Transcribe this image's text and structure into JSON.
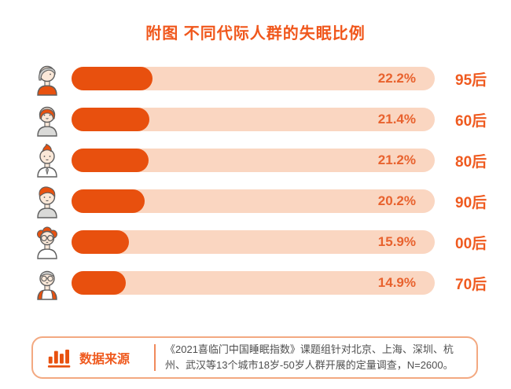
{
  "title": "附图 不同代际人群的失眠比例",
  "chart_data": {
    "type": "bar",
    "orientation": "horizontal",
    "title": "附图 不同代际人群的失眠比例",
    "categories": [
      "95后",
      "60后",
      "80后",
      "90后",
      "00后",
      "70后"
    ],
    "values": [
      22.2,
      21.4,
      21.2,
      20.2,
      15.9,
      14.9
    ],
    "value_labels": [
      "22.2%",
      "21.4%",
      "21.2%",
      "20.2%",
      "15.9%",
      "14.9%"
    ],
    "xlim": [
      0,
      100
    ],
    "grid": "off",
    "legend": "none",
    "bar_color": "#e8500e",
    "track_color": "#fad6c1"
  },
  "rows": [
    {
      "icon": "avatar-95s",
      "label": "95后",
      "value": 22.2,
      "value_label": "22.2%"
    },
    {
      "icon": "avatar-60s",
      "label": "60后",
      "value": 21.4,
      "value_label": "21.4%"
    },
    {
      "icon": "avatar-80s",
      "label": "80后",
      "value": 21.2,
      "value_label": "21.2%"
    },
    {
      "icon": "avatar-90s",
      "label": "90后",
      "value": 20.2,
      "value_label": "20.2%"
    },
    {
      "icon": "avatar-00s",
      "label": "00后",
      "value": 15.9,
      "value_label": "15.9%"
    },
    {
      "icon": "avatar-70s",
      "label": "70后",
      "value": 14.9,
      "value_label": "14.9%"
    }
  ],
  "source": {
    "icon": "bar-chart-icon",
    "label": "数据来源",
    "text": "《2021喜临门中国睡眠指数》课题组针对北京、上海、深圳、杭州、武汉等13个城市18岁-50岁人群开展的定量调查，N=2600。"
  },
  "colors": {
    "accent": "#f0571c",
    "bar_fill": "#e8500e",
    "bar_track": "#fad6c1",
    "value_text": "#e8622e",
    "category_text": "#ef5a1f",
    "source_text": "#4f4f4f",
    "source_border": "#f3a981"
  }
}
